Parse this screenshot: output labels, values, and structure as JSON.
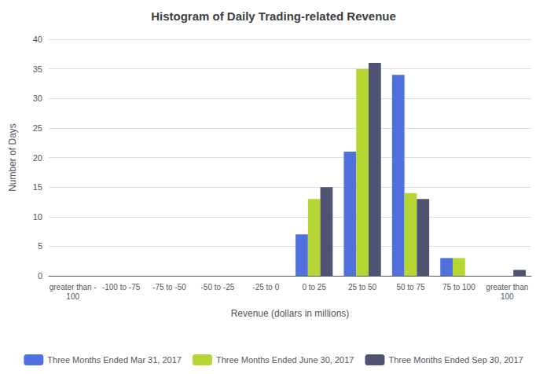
{
  "chart_data": {
    "type": "bar",
    "title": "Histogram of Daily Trading-related Revenue",
    "xlabel": "Revenue (dollars in millions)",
    "ylabel": "Number of Days",
    "categories": [
      "greater than -\n100",
      "-100 to -75",
      "-75 to -50",
      "-50 to -25",
      "-25 to 0",
      "0 to 25",
      "25 to 50",
      "50 to 75",
      "75 to 100",
      "greater than\n100"
    ],
    "series": [
      {
        "name": "Three Months Ended Mar 31, 2017",
        "values": [
          0,
          0,
          0,
          0,
          0,
          7,
          21,
          34,
          3,
          0
        ]
      },
      {
        "name": "Three Months Ended June 30, 2017",
        "values": [
          0,
          0,
          0,
          0,
          0,
          13,
          35,
          14,
          3,
          0
        ]
      },
      {
        "name": "Three Months Ended Sep 30, 2017",
        "values": [
          0,
          0,
          0,
          0,
          0,
          15,
          36,
          13,
          0,
          1
        ]
      }
    ],
    "ylim": [
      0,
      40
    ],
    "yticks": [
      0,
      5,
      10,
      15,
      20,
      25,
      30,
      35,
      40
    ],
    "grid": true,
    "legend": "bottom"
  }
}
